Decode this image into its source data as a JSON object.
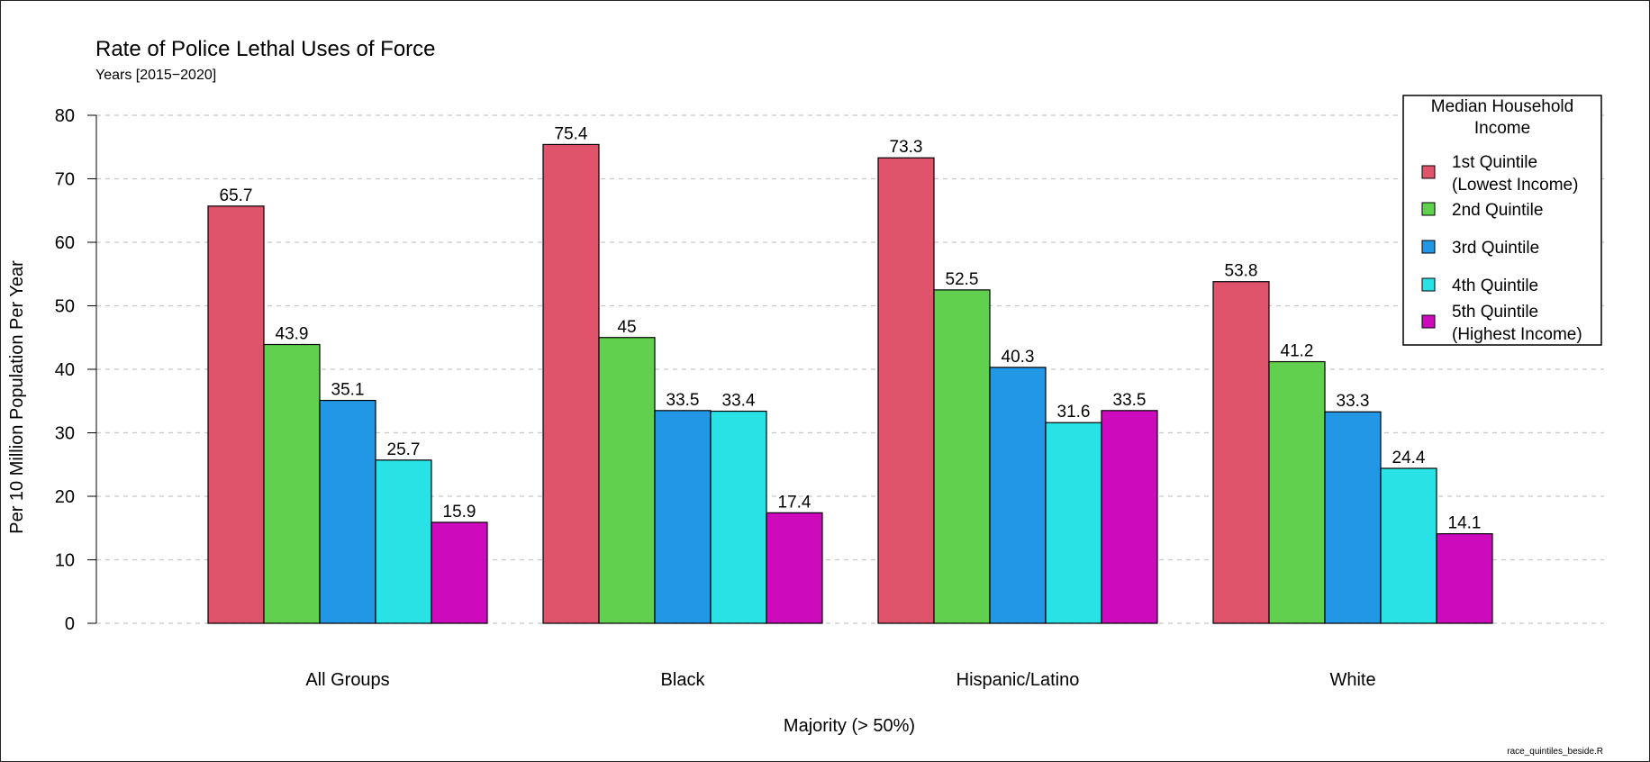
{
  "chart_data": {
    "type": "bar",
    "title": "Rate of Police Lethal Uses of Force",
    "subtitle": "Years [2015−2020]",
    "xlabel": "Majority (> 50%)",
    "ylabel": "Per 10 Million Population Per Year",
    "ylim": [
      0,
      80
    ],
    "yticks": [
      "0",
      "10",
      "20",
      "30",
      "40",
      "50",
      "60",
      "70",
      "80"
    ],
    "grid": "horizontal dashed",
    "categories": [
      "All Groups",
      "Black",
      "Hispanic/Latino",
      "White"
    ],
    "series": [
      {
        "name": "1st Quintile (Lowest Income)",
        "legend_lines": [
          "1st Quintile",
          "(Lowest Income)"
        ],
        "color": "#df536b",
        "values": [
          65.7,
          75.4,
          73.3,
          53.8
        ],
        "labels": [
          "65.7",
          "75.4",
          "73.3",
          "53.8"
        ]
      },
      {
        "name": "2nd Quintile",
        "legend_lines": [
          "2nd Quintile"
        ],
        "color": "#61d04f",
        "values": [
          43.9,
          45,
          52.5,
          41.2
        ],
        "labels": [
          "43.9",
          "45",
          "52.5",
          "41.2"
        ]
      },
      {
        "name": "3rd Quintile",
        "legend_lines": [
          "3rd Quintile"
        ],
        "color": "#2297e6",
        "values": [
          35.1,
          33.5,
          40.3,
          33.3
        ],
        "labels": [
          "35.1",
          "33.5",
          "40.3",
          "33.3"
        ]
      },
      {
        "name": "4th Quintile",
        "legend_lines": [
          "4th Quintile"
        ],
        "color": "#28e2e5",
        "values": [
          25.7,
          33.4,
          31.6,
          24.4
        ],
        "labels": [
          "25.7",
          "33.4",
          "31.6",
          "24.4"
        ]
      },
      {
        "name": "5th Quintile (Highest Income)",
        "legend_lines": [
          "5th Quintile",
          "(Highest Income)"
        ],
        "color": "#cd0bbc",
        "values": [
          15.9,
          17.4,
          33.5,
          14.1
        ],
        "labels": [
          "15.9",
          "17.4",
          "33.5",
          "14.1"
        ]
      }
    ],
    "legend": {
      "title_lines": [
        "Median Household",
        "Income"
      ],
      "placement": "top-right"
    }
  },
  "footnote": "race_quintiles_beside.R"
}
